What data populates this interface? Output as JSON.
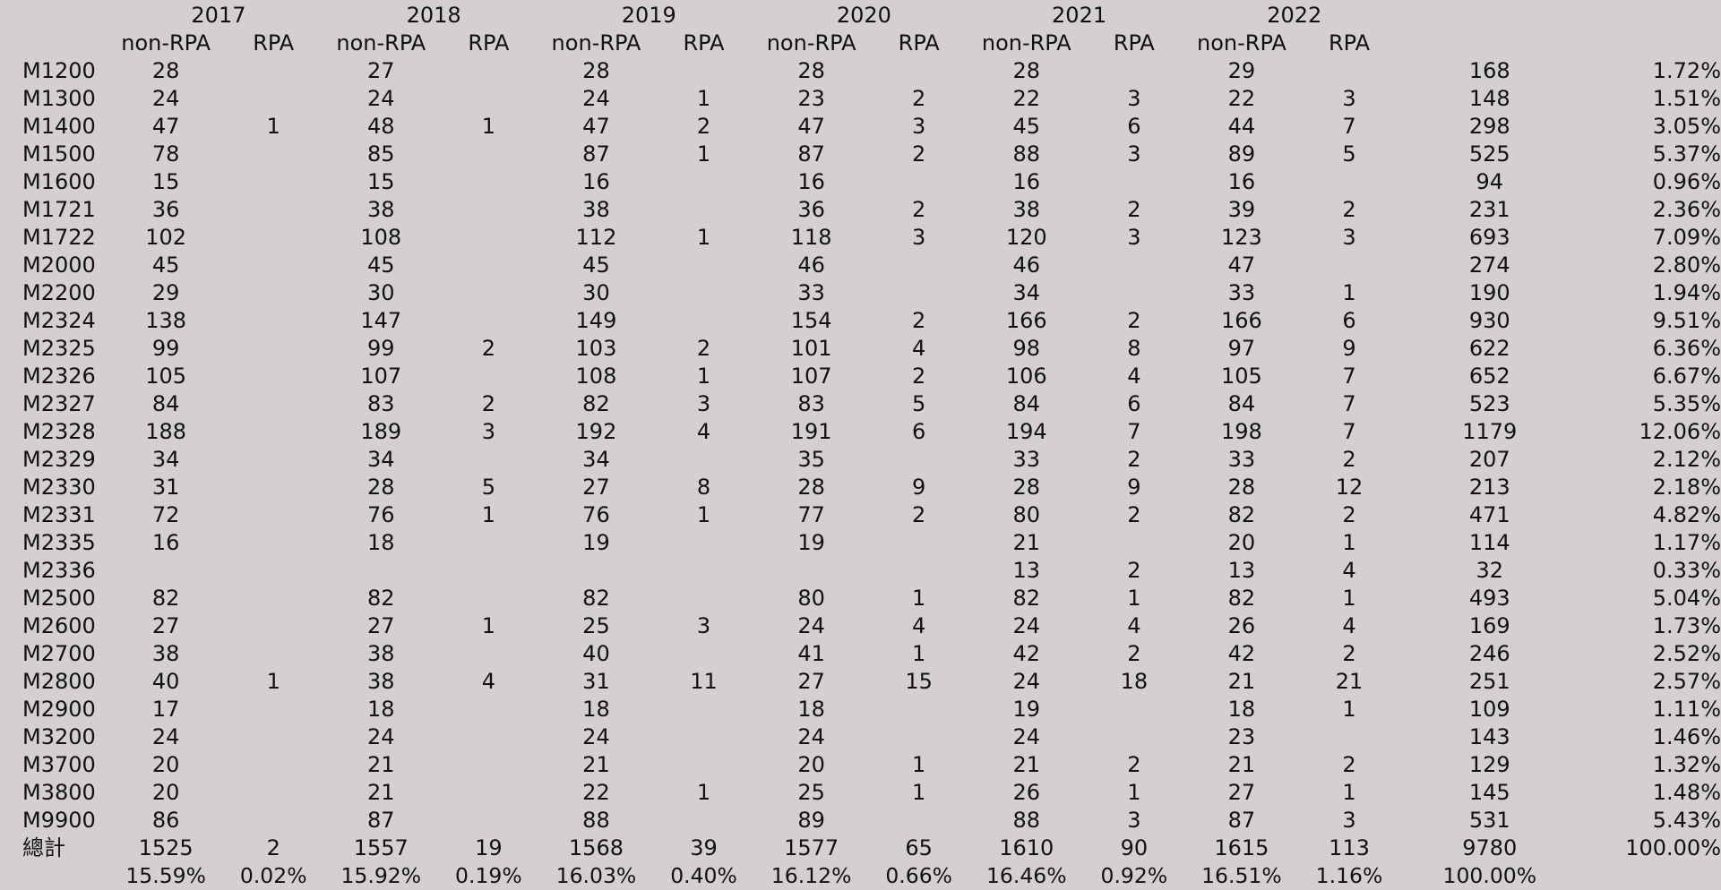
{
  "table": {
    "years": [
      "2017",
      "2018",
      "2019",
      "2020",
      "2021",
      "2022"
    ],
    "sub_headers": [
      "non-RPA",
      "RPA",
      "non-RPA",
      "RPA",
      "non-RPA",
      "RPA",
      "non-RPA",
      "RPA",
      "non-RPA",
      "RPA",
      "non-RPA",
      "RPA"
    ],
    "rows": [
      {
        "label": "M1200",
        "cells": [
          "28",
          "",
          "27",
          "",
          "28",
          "",
          "28",
          "",
          "28",
          "",
          "29",
          "",
          "168",
          "1.72%"
        ]
      },
      {
        "label": "M1300",
        "cells": [
          "24",
          "",
          "24",
          "",
          "24",
          "1",
          "23",
          "2",
          "22",
          "3",
          "22",
          "3",
          "148",
          "1.51%"
        ]
      },
      {
        "label": "M1400",
        "cells": [
          "47",
          "1",
          "48",
          "1",
          "47",
          "2",
          "47",
          "3",
          "45",
          "6",
          "44",
          "7",
          "298",
          "3.05%"
        ]
      },
      {
        "label": "M1500",
        "cells": [
          "78",
          "",
          "85",
          "",
          "87",
          "1",
          "87",
          "2",
          "88",
          "3",
          "89",
          "5",
          "525",
          "5.37%"
        ]
      },
      {
        "label": "M1600",
        "cells": [
          "15",
          "",
          "15",
          "",
          "16",
          "",
          "16",
          "",
          "16",
          "",
          "16",
          "",
          "94",
          "0.96%"
        ]
      },
      {
        "label": "M1721",
        "cells": [
          "36",
          "",
          "38",
          "",
          "38",
          "",
          "36",
          "2",
          "38",
          "2",
          "39",
          "2",
          "231",
          "2.36%"
        ]
      },
      {
        "label": "M1722",
        "cells": [
          "102",
          "",
          "108",
          "",
          "112",
          "1",
          "118",
          "3",
          "120",
          "3",
          "123",
          "3",
          "693",
          "7.09%"
        ]
      },
      {
        "label": "M2000",
        "cells": [
          "45",
          "",
          "45",
          "",
          "45",
          "",
          "46",
          "",
          "46",
          "",
          "47",
          "",
          "274",
          "2.80%"
        ]
      },
      {
        "label": "M2200",
        "cells": [
          "29",
          "",
          "30",
          "",
          "30",
          "",
          "33",
          "",
          "34",
          "",
          "33",
          "1",
          "190",
          "1.94%"
        ]
      },
      {
        "label": "M2324",
        "cells": [
          "138",
          "",
          "147",
          "",
          "149",
          "",
          "154",
          "2",
          "166",
          "2",
          "166",
          "6",
          "930",
          "9.51%"
        ]
      },
      {
        "label": "M2325",
        "cells": [
          "99",
          "",
          "99",
          "2",
          "103",
          "2",
          "101",
          "4",
          "98",
          "8",
          "97",
          "9",
          "622",
          "6.36%"
        ]
      },
      {
        "label": "M2326",
        "cells": [
          "105",
          "",
          "107",
          "",
          "108",
          "1",
          "107",
          "2",
          "106",
          "4",
          "105",
          "7",
          "652",
          "6.67%"
        ]
      },
      {
        "label": "M2327",
        "cells": [
          "84",
          "",
          "83",
          "2",
          "82",
          "3",
          "83",
          "5",
          "84",
          "6",
          "84",
          "7",
          "523",
          "5.35%"
        ]
      },
      {
        "label": "M2328",
        "cells": [
          "188",
          "",
          "189",
          "3",
          "192",
          "4",
          "191",
          "6",
          "194",
          "7",
          "198",
          "7",
          "1179",
          "12.06%"
        ]
      },
      {
        "label": "M2329",
        "cells": [
          "34",
          "",
          "34",
          "",
          "34",
          "",
          "35",
          "",
          "33",
          "2",
          "33",
          "2",
          "207",
          "2.12%"
        ]
      },
      {
        "label": "M2330",
        "cells": [
          "31",
          "",
          "28",
          "5",
          "27",
          "8",
          "28",
          "9",
          "28",
          "9",
          "28",
          "12",
          "213",
          "2.18%"
        ]
      },
      {
        "label": "M2331",
        "cells": [
          "72",
          "",
          "76",
          "1",
          "76",
          "1",
          "77",
          "2",
          "80",
          "2",
          "82",
          "2",
          "471",
          "4.82%"
        ]
      },
      {
        "label": "M2335",
        "cells": [
          "16",
          "",
          "18",
          "",
          "19",
          "",
          "19",
          "",
          "21",
          "",
          "20",
          "1",
          "114",
          "1.17%"
        ]
      },
      {
        "label": "M2336",
        "cells": [
          "",
          "",
          "",
          "",
          "",
          "",
          "",
          "",
          "13",
          "2",
          "13",
          "4",
          "32",
          "0.33%"
        ]
      },
      {
        "label": "M2500",
        "cells": [
          "82",
          "",
          "82",
          "",
          "82",
          "",
          "80",
          "1",
          "82",
          "1",
          "82",
          "1",
          "493",
          "5.04%"
        ]
      },
      {
        "label": "M2600",
        "cells": [
          "27",
          "",
          "27",
          "1",
          "25",
          "3",
          "24",
          "4",
          "24",
          "4",
          "26",
          "4",
          "169",
          "1.73%"
        ]
      },
      {
        "label": "M2700",
        "cells": [
          "38",
          "",
          "38",
          "",
          "40",
          "",
          "41",
          "1",
          "42",
          "2",
          "42",
          "2",
          "246",
          "2.52%"
        ]
      },
      {
        "label": "M2800",
        "cells": [
          "40",
          "1",
          "38",
          "4",
          "31",
          "11",
          "27",
          "15",
          "24",
          "18",
          "21",
          "21",
          "251",
          "2.57%"
        ]
      },
      {
        "label": "M2900",
        "cells": [
          "17",
          "",
          "18",
          "",
          "18",
          "",
          "18",
          "",
          "19",
          "",
          "18",
          "1",
          "109",
          "1.11%"
        ]
      },
      {
        "label": "M3200",
        "cells": [
          "24",
          "",
          "24",
          "",
          "24",
          "",
          "24",
          "",
          "24",
          "",
          "23",
          "",
          "143",
          "1.46%"
        ]
      },
      {
        "label": "M3700",
        "cells": [
          "20",
          "",
          "21",
          "",
          "21",
          "",
          "20",
          "1",
          "21",
          "2",
          "21",
          "2",
          "129",
          "1.32%"
        ]
      },
      {
        "label": "M3800",
        "cells": [
          "20",
          "",
          "21",
          "",
          "22",
          "1",
          "25",
          "1",
          "26",
          "1",
          "27",
          "1",
          "145",
          "1.48%"
        ]
      },
      {
        "label": "M9900",
        "cells": [
          "86",
          "",
          "87",
          "",
          "88",
          "",
          "89",
          "",
          "88",
          "3",
          "87",
          "3",
          "531",
          "5.43%"
        ]
      }
    ],
    "total_row": {
      "label": "總計",
      "cells": [
        "1525",
        "2",
        "1557",
        "19",
        "1568",
        "39",
        "1577",
        "65",
        "1610",
        "90",
        "1615",
        "113",
        "9780",
        "100.00%"
      ]
    },
    "percent_row": {
      "cells": [
        "15.59%",
        "0.02%",
        "15.92%",
        "0.19%",
        "16.03%",
        "0.40%",
        "16.12%",
        "0.66%",
        "16.46%",
        "0.92%",
        "16.51%",
        "1.16%",
        "100.00%",
        ""
      ]
    }
  }
}
